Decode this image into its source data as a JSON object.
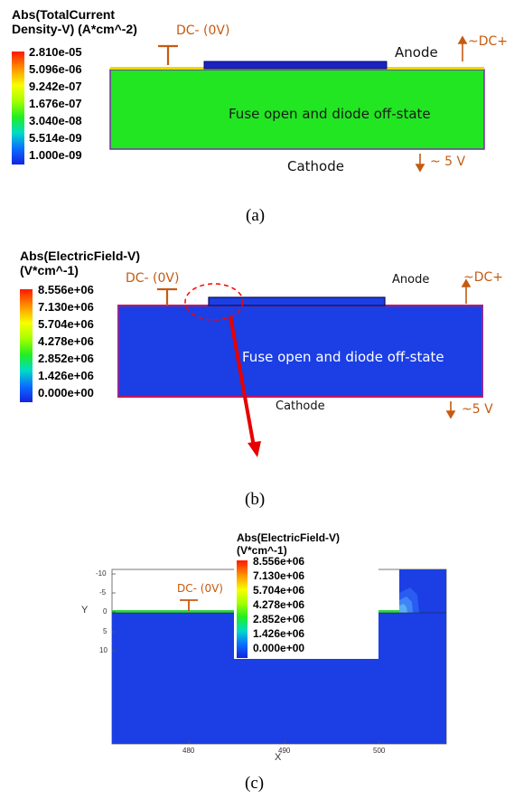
{
  "panel_a": {
    "legend": {
      "title_line1": "Abs(TotalCurrent",
      "title_line2": "Density-V) (A*cm^-2)",
      "labels": [
        "2.810e-05",
        "5.096e-06",
        "9.242e-07",
        "1.676e-07",
        "3.040e-08",
        "5.514e-09",
        "1.000e-09"
      ]
    },
    "terminal_left": "DC- (0V)",
    "anode": "Anode",
    "terminal_right": "~DC+",
    "center_text": "Fuse open and diode off-state",
    "cathode": "Cathode",
    "cathode_voltage": "~ 5 V",
    "caption": "(a)",
    "colors": {
      "body": "#22e622",
      "contact": "#1a23c4",
      "outline": "#7b2aa8"
    }
  },
  "panel_b": {
    "legend": {
      "title_line1": "Abs(ElectricField-V)",
      "title_line2": "(V*cm^-1)",
      "labels": [
        "8.556e+06",
        "7.130e+06",
        "5.704e+06",
        "4.278e+06",
        "2.852e+06",
        "1.426e+06",
        "0.000e+00"
      ]
    },
    "terminal_left": "DC- (0V)",
    "anode": "Anode",
    "terminal_right": "~DC+",
    "center_text": "Fuse open and diode off-state",
    "cathode": "Cathode",
    "cathode_voltage": "~5 V",
    "caption": "(b)",
    "colors": {
      "body": "#1b3fe4",
      "highlight": "#ff0000"
    }
  },
  "panel_c": {
    "legend": {
      "title_line1": "Abs(ElectricField-V)",
      "title_line2": "(V*cm^-1)",
      "labels": [
        "8.556e+06",
        "7.130e+06",
        "5.704e+06",
        "4.278e+06",
        "2.852e+06",
        "1.426e+06",
        "0.000e+00"
      ]
    },
    "terminal_left": "DC- (0V)",
    "y_axis_label": "Y",
    "x_axis_label": "X",
    "y_ticks": [
      "-10",
      "-5",
      "0",
      "5",
      "10"
    ],
    "x_ticks": [
      "480",
      "490",
      "500"
    ],
    "caption": "(c)"
  }
}
